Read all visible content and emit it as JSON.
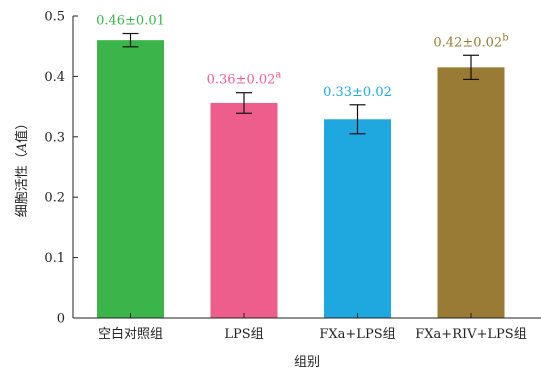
{
  "chart_data": {
    "type": "bar",
    "categories": [
      "空白对照组",
      "LPS组",
      "FXa+LPS组",
      "FXa+RIV+LPS组"
    ],
    "values": [
      0.46,
      0.356,
      0.329,
      0.415
    ],
    "errors": [
      0.011,
      0.017,
      0.024,
      0.02
    ],
    "colors": [
      "#3bb54a",
      "#ee5e8c",
      "#1fa7e0",
      "#9a7b35"
    ],
    "data_labels": [
      "0.46±0.01",
      "0.36±0.02",
      "0.33±0.02",
      "0.42±0.02"
    ],
    "label_superscripts": [
      "",
      "a",
      "",
      "b"
    ],
    "xlabel": "组别",
    "ylabel": "细胞活性（A值）",
    "ylabel_parts": [
      "细胞活性（",
      "A",
      "值）"
    ],
    "ylim": [
      0,
      0.5
    ],
    "yticks": [
      "0",
      "0.1",
      "0.2",
      "0.3",
      "0.4",
      "0.5"
    ],
    "ytick_values": [
      0,
      0.1,
      0.2,
      0.3,
      0.4,
      0.5
    ],
    "grid": false,
    "legend": "none"
  }
}
